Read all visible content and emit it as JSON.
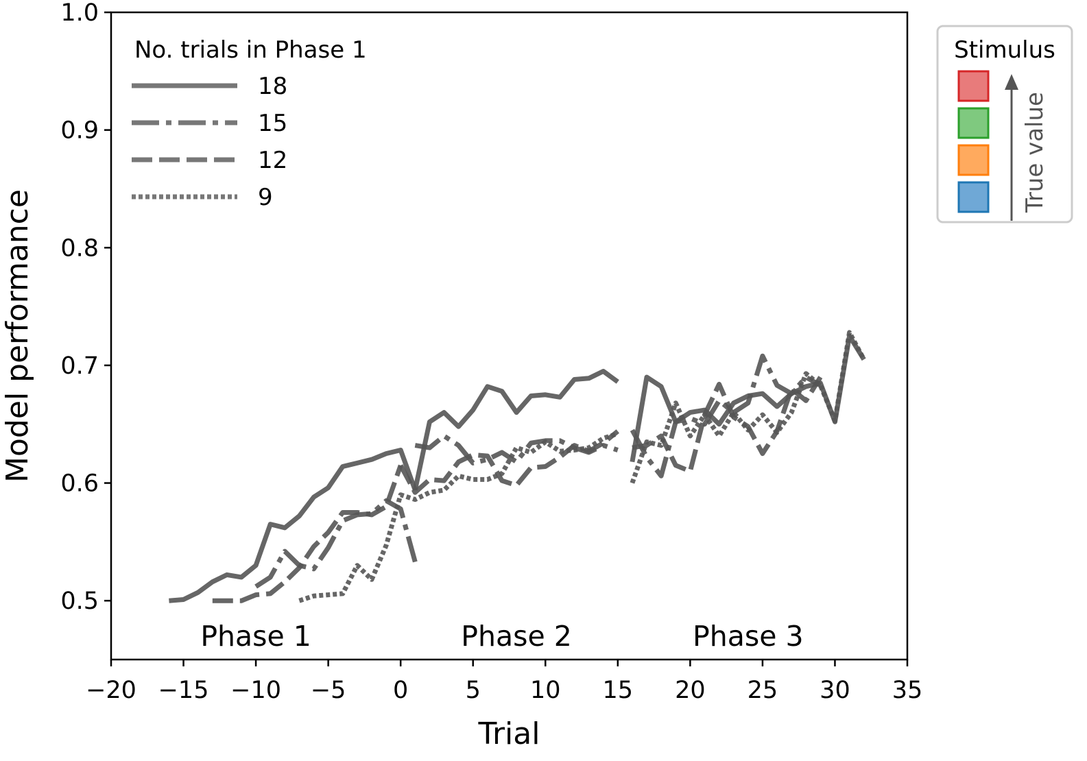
{
  "chart_data": {
    "type": "line",
    "xlabel": "Trial",
    "ylabel": "Model performance",
    "xlim": [
      -20,
      35
    ],
    "ylim": [
      0.45,
      1.0
    ],
    "x_ticks": [
      "−20",
      "−15",
      "−10",
      "−5",
      "0",
      "5",
      "10",
      "15",
      "20",
      "25",
      "30",
      "35"
    ],
    "x_tick_values": [
      -20,
      -15,
      -10,
      -5,
      0,
      5,
      10,
      15,
      20,
      25,
      30,
      35
    ],
    "y_ticks": [
      "0.5",
      "0.6",
      "0.7",
      "0.8",
      "0.9",
      "1.0"
    ],
    "y_tick_values": [
      0.5,
      0.6,
      0.7,
      0.8,
      0.9,
      1.0
    ],
    "phase_labels": [
      {
        "text": "Phase 1",
        "x": -10
      },
      {
        "text": "Phase 2",
        "x": 8
      },
      {
        "text": "Phase 3",
        "x": 24
      }
    ],
    "line_color": "#555555",
    "legend_title": "No. trials in Phase 1",
    "legend_position": "top-left",
    "series": [
      {
        "name": "18",
        "style": "solid",
        "segments": [
          {
            "x": [
              -16,
              -15,
              -14,
              -13,
              -12,
              -11,
              -10,
              -9,
              -8,
              -7,
              -6,
              -5,
              -4,
              -3,
              -2,
              -1,
              0,
              1
            ],
            "y": [
              0.5,
              0.501,
              0.507,
              0.516,
              0.522,
              0.52,
              0.53,
              0.565,
              0.562,
              0.572,
              0.588,
              0.596,
              0.614,
              0.617,
              0.62,
              0.625,
              0.628,
              0.594
            ]
          },
          {
            "x": [
              1,
              2,
              3,
              4,
              5,
              6,
              7,
              8,
              9,
              10,
              11,
              12,
              13,
              14,
              15
            ],
            "y": [
              0.594,
              0.652,
              0.66,
              0.648,
              0.662,
              0.682,
              0.678,
              0.66,
              0.674,
              0.675,
              0.673,
              0.688,
              0.689,
              0.695,
              0.686
            ]
          },
          {
            "x": [
              16,
              17,
              18,
              19,
              20,
              21,
              22,
              23,
              24,
              25,
              26,
              27,
              28,
              29,
              30,
              31,
              32
            ],
            "y": [
              0.618,
              0.69,
              0.682,
              0.652,
              0.66,
              0.662,
              0.65,
              0.668,
              0.674,
              0.676,
              0.665,
              0.676,
              0.682,
              0.685,
              0.652,
              0.725,
              0.705
            ]
          }
        ]
      },
      {
        "name": "15",
        "style": "dashdot",
        "segments": [
          {
            "x": [
              -10,
              -9,
              -8,
              -7,
              -6,
              -5,
              -4,
              -3,
              -2,
              -1,
              0,
              1
            ],
            "y": [
              0.512,
              0.52,
              0.542,
              0.53,
              0.527,
              0.545,
              0.568,
              0.573,
              0.574,
              0.585,
              0.578,
              0.533
            ]
          },
          {
            "x": [
              1,
              2,
              3,
              4,
              5,
              6,
              7,
              8,
              9,
              10,
              11,
              12,
              13,
              14,
              15
            ],
            "y": [
              0.632,
              0.63,
              0.64,
              0.632,
              0.617,
              0.62,
              0.626,
              0.618,
              0.634,
              0.636,
              0.636,
              0.63,
              0.626,
              0.632,
              0.628
            ]
          },
          {
            "x": [
              16,
              17,
              18,
              19,
              20,
              21,
              22,
              23,
              24,
              25,
              26,
              27,
              28,
              29
            ],
            "y": [
              0.645,
              0.622,
              0.606,
              0.652,
              0.655,
              0.65,
              0.67,
              0.66,
              0.668,
              0.708,
              0.683,
              0.676,
              0.69,
              0.683
            ]
          }
        ]
      },
      {
        "name": "12",
        "style": "dashed",
        "segments": [
          {
            "x": [
              -13,
              -12,
              -11,
              -10,
              -9,
              -8,
              -7,
              -6,
              -5,
              -4,
              -3,
              -2,
              -1,
              0
            ],
            "y": [
              0.5,
              0.5,
              0.5,
              0.505,
              0.506,
              0.516,
              0.528,
              0.546,
              0.558,
              0.575,
              0.575,
              0.573,
              0.58,
              0.615
            ]
          },
          {
            "x": [
              0,
              1,
              2,
              3,
              4,
              5,
              6,
              7,
              8,
              9,
              10,
              11,
              12,
              13,
              14,
              15
            ],
            "y": [
              0.615,
              0.592,
              0.603,
              0.602,
              0.618,
              0.624,
              0.623,
              0.602,
              0.598,
              0.613,
              0.614,
              0.622,
              0.632,
              0.627,
              0.634,
              0.644
            ]
          },
          {
            "x": [
              16,
              17,
              18,
              19,
              20,
              21,
              22,
              23,
              24,
              25,
              26,
              27,
              28,
              29
            ],
            "y": [
              0.63,
              0.632,
              0.64,
              0.615,
              0.61,
              0.658,
              0.684,
              0.656,
              0.648,
              0.625,
              0.644,
              0.68,
              0.67,
              0.69
            ]
          }
        ]
      },
      {
        "name": "9",
        "style": "dotted",
        "segments": [
          {
            "x": [
              -7,
              -6,
              -5,
              -4,
              -3,
              -2,
              -1,
              0,
              1,
              2,
              3,
              4,
              5,
              6,
              7,
              8,
              9,
              10,
              11,
              12,
              13,
              14,
              15
            ],
            "y": [
              0.5,
              0.504,
              0.505,
              0.506,
              0.53,
              0.518,
              0.547,
              0.59,
              0.586,
              0.592,
              0.594,
              0.606,
              0.603,
              0.603,
              0.608,
              0.63,
              0.626,
              0.635,
              0.627,
              0.628,
              0.63,
              0.638,
              0.642
            ]
          },
          {
            "x": [
              16,
              17,
              18,
              19,
              20,
              21,
              22,
              23,
              24,
              25,
              26,
              27,
              28,
              29,
              30,
              31,
              32
            ],
            "y": [
              0.6,
              0.635,
              0.632,
              0.668,
              0.64,
              0.658,
              0.64,
              0.66,
              0.645,
              0.658,
              0.643,
              0.66,
              0.693,
              0.683,
              0.653,
              0.728,
              0.705
            ]
          }
        ]
      }
    ]
  },
  "legend2": {
    "title": "Stimulus",
    "swatches": [
      {
        "color": "#e87b7b",
        "border": "#d62728"
      },
      {
        "color": "#7fc97f",
        "border": "#2ca02c"
      },
      {
        "color": "#ffaa5e",
        "border": "#ff7f0e"
      },
      {
        "color": "#6fa8d6",
        "border": "#1f77b4"
      }
    ],
    "arrow_label": "True value"
  }
}
